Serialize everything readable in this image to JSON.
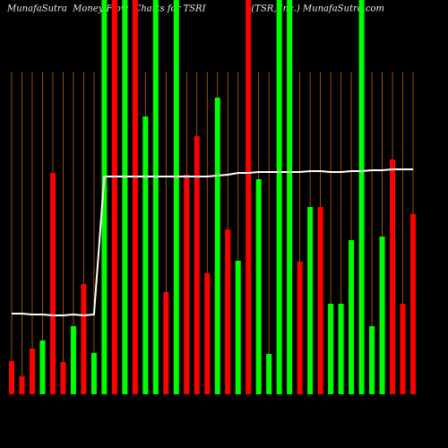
{
  "chart_data": {
    "type": "bar",
    "title": "MunafaSutra  Money Flow  Charts for TSRI                (TSR, Inc.) MunafaSutra.com",
    "categories": [
      null,
      null,
      null,
      null,
      null,
      null,
      null,
      null,
      null,
      null,
      null,
      null,
      null,
      null,
      null,
      null,
      null,
      null,
      null,
      null,
      null,
      null,
      null,
      null,
      null,
      null,
      null,
      null,
      null,
      null,
      null,
      null,
      null,
      null,
      null,
      null,
      null,
      null,
      null,
      null
    ],
    "ylim": [
      0,
      440
    ],
    "series": [
      {
        "type": "bar",
        "values": [
          37,
          20,
          51,
          60,
          247,
          36,
          76,
          123,
          46,
          440,
          440,
          440,
          440,
          310,
          440,
          114,
          440,
          245,
          288,
          135,
          331,
          184,
          149,
          440,
          240,
          45,
          440,
          440,
          148,
          209,
          209,
          101,
          101,
          172,
          440,
          76,
          176,
          262,
          101,
          201
        ],
        "colors": [
          "#ff0000",
          "#ff0000",
          "#ff0000",
          "#00ff00",
          "#ff0000",
          "#ff0000",
          "#00ff00",
          "#ff0000",
          "#00ff00",
          "#00ff00",
          "#ff0000",
          "#00ff00",
          "#ff0000",
          "#00ff00",
          "#00ff00",
          "#ff0000",
          "#00ff00",
          "#ff0000",
          "#ff0000",
          "#ff0000",
          "#00ff00",
          "#ff0000",
          "#00ff00",
          "#ff0000",
          "#00ff00",
          "#00ff00",
          "#00ff00",
          "#00ff00",
          "#ff0000",
          "#00ff00",
          "#ff0000",
          "#00ff00",
          "#00ff00",
          "#00ff00",
          "#00ff00",
          "#00ff00",
          "#00ff00",
          "#ff0000",
          "#ff0000",
          "#ff0000"
        ]
      },
      {
        "type": "line",
        "color": "#ffffff",
        "values": [
          90,
          90,
          89,
          89,
          88,
          88,
          89,
          88,
          89,
          243,
          243,
          243,
          243,
          243,
          243,
          243,
          243,
          243,
          243,
          243,
          244,
          245,
          247,
          247,
          248,
          248,
          248,
          248,
          248,
          249,
          249,
          248,
          248,
          249,
          249,
          250,
          250,
          251,
          251,
          251
        ]
      }
    ]
  }
}
